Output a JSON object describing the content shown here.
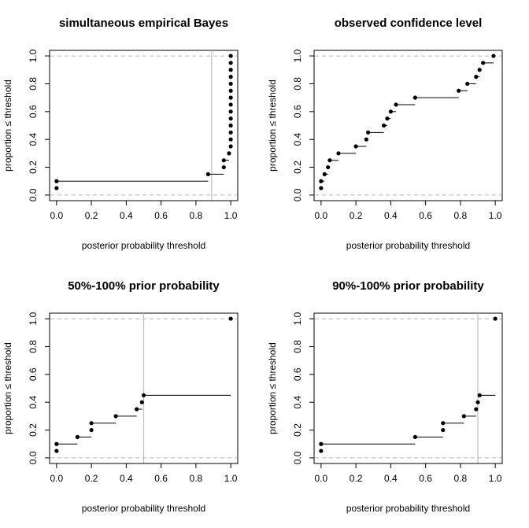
{
  "chart_data": [
    {
      "type": "scatter",
      "title": "simultaneous empirical Bayes",
      "xlabel": "posterior probability threshold",
      "ylabel": "proportion ≤ threshold",
      "xlim": [
        0,
        1
      ],
      "ylim": [
        0,
        1
      ],
      "xticks": [
        0.0,
        0.2,
        0.4,
        0.6,
        0.8,
        1.0
      ],
      "yticks": [
        0.0,
        0.2,
        0.4,
        0.6,
        0.8,
        1.0
      ],
      "tick_labels": [
        "0.0",
        "0.2",
        "0.4",
        "0.6",
        "0.8",
        "1.0"
      ],
      "ref_hlines": [
        0,
        1
      ],
      "vline": 0.89,
      "points": [
        [
          0.0,
          0.05
        ],
        [
          0.0,
          0.1
        ],
        [
          0.87,
          0.15
        ],
        [
          0.96,
          0.2
        ],
        [
          0.96,
          0.25
        ],
        [
          0.99,
          0.3
        ],
        [
          1.0,
          0.35
        ],
        [
          1.0,
          0.4
        ],
        [
          1.0,
          0.45
        ],
        [
          1.0,
          0.5
        ],
        [
          1.0,
          0.55
        ],
        [
          1.0,
          0.6
        ],
        [
          1.0,
          0.65
        ],
        [
          1.0,
          0.7
        ],
        [
          1.0,
          0.75
        ],
        [
          1.0,
          0.8
        ],
        [
          1.0,
          0.85
        ],
        [
          1.0,
          0.9
        ],
        [
          1.0,
          0.95
        ],
        [
          1.0,
          1.0
        ]
      ],
      "steps": [
        [
          0.0,
          0.87,
          0.1
        ],
        [
          0.87,
          0.96,
          0.15
        ],
        [
          0.96,
          0.99,
          0.25
        ]
      ]
    },
    {
      "type": "scatter",
      "title": "observed confidence level",
      "xlabel": "posterior probability threshold",
      "ylabel": "proportion ≤ threshold",
      "xlim": [
        0,
        1
      ],
      "ylim": [
        0,
        1
      ],
      "xticks": [
        0.0,
        0.2,
        0.4,
        0.6,
        0.8,
        1.0
      ],
      "yticks": [
        0.0,
        0.2,
        0.4,
        0.6,
        0.8,
        1.0
      ],
      "tick_labels": [
        "0.0",
        "0.2",
        "0.4",
        "0.6",
        "0.8",
        "1.0"
      ],
      "ref_hlines": [
        0,
        1
      ],
      "vline": null,
      "points": [
        [
          0.0,
          0.05
        ],
        [
          0.0,
          0.1
        ],
        [
          0.02,
          0.15
        ],
        [
          0.04,
          0.2
        ],
        [
          0.05,
          0.25
        ],
        [
          0.1,
          0.3
        ],
        [
          0.2,
          0.35
        ],
        [
          0.26,
          0.4
        ],
        [
          0.27,
          0.45
        ],
        [
          0.36,
          0.5
        ],
        [
          0.38,
          0.55
        ],
        [
          0.4,
          0.6
        ],
        [
          0.43,
          0.65
        ],
        [
          0.54,
          0.7
        ],
        [
          0.79,
          0.75
        ],
        [
          0.84,
          0.8
        ],
        [
          0.89,
          0.85
        ],
        [
          0.91,
          0.9
        ],
        [
          0.93,
          0.95
        ],
        [
          0.99,
          1.0
        ]
      ],
      "steps": [
        [
          0.0,
          0.02,
          0.1
        ],
        [
          0.02,
          0.04,
          0.15
        ],
        [
          0.05,
          0.1,
          0.25
        ],
        [
          0.1,
          0.2,
          0.3
        ],
        [
          0.2,
          0.26,
          0.35
        ],
        [
          0.27,
          0.36,
          0.45
        ],
        [
          0.36,
          0.38,
          0.5
        ],
        [
          0.38,
          0.4,
          0.55
        ],
        [
          0.4,
          0.43,
          0.6
        ],
        [
          0.43,
          0.54,
          0.65
        ],
        [
          0.54,
          0.79,
          0.7
        ],
        [
          0.79,
          0.84,
          0.75
        ],
        [
          0.84,
          0.89,
          0.8
        ],
        [
          0.89,
          0.91,
          0.85
        ],
        [
          0.93,
          0.99,
          0.95
        ],
        [
          0.99,
          1.0,
          1.0
        ]
      ]
    },
    {
      "type": "scatter",
      "title": "50%-100% prior probability",
      "xlabel": "posterior probability threshold",
      "ylabel": "proportion ≤ threshold",
      "xlim": [
        0,
        1
      ],
      "ylim": [
        0,
        1
      ],
      "xticks": [
        0.0,
        0.2,
        0.4,
        0.6,
        0.8,
        1.0
      ],
      "yticks": [
        0.0,
        0.2,
        0.4,
        0.6,
        0.8,
        1.0
      ],
      "tick_labels": [
        "0.0",
        "0.2",
        "0.4",
        "0.6",
        "0.8",
        "1.0"
      ],
      "ref_hlines": [
        0,
        1
      ],
      "vline": 0.5,
      "points": [
        [
          0.0,
          0.05
        ],
        [
          0.0,
          0.1
        ],
        [
          0.12,
          0.15
        ],
        [
          0.2,
          0.2
        ],
        [
          0.2,
          0.25
        ],
        [
          0.34,
          0.3
        ],
        [
          0.46,
          0.35
        ],
        [
          0.49,
          0.4
        ],
        [
          0.5,
          0.45
        ],
        [
          1.0,
          1.0
        ]
      ],
      "steps": [
        [
          0.0,
          0.12,
          0.1
        ],
        [
          0.12,
          0.2,
          0.15
        ],
        [
          0.2,
          0.34,
          0.25
        ],
        [
          0.34,
          0.46,
          0.3
        ],
        [
          0.46,
          0.49,
          0.35
        ],
        [
          0.5,
          1.0,
          0.45
        ]
      ]
    },
    {
      "type": "scatter",
      "title": "90%-100% prior probability",
      "xlabel": "posterior probability threshold",
      "ylabel": "proportion ≤ threshold",
      "xlim": [
        0,
        1
      ],
      "ylim": [
        0,
        1
      ],
      "xticks": [
        0.0,
        0.2,
        0.4,
        0.6,
        0.8,
        1.0
      ],
      "yticks": [
        0.0,
        0.2,
        0.4,
        0.6,
        0.8,
        1.0
      ],
      "tick_labels": [
        "0.0",
        "0.2",
        "0.4",
        "0.6",
        "0.8",
        "1.0"
      ],
      "ref_hlines": [
        0,
        1
      ],
      "vline": 0.9,
      "points": [
        [
          0.0,
          0.05
        ],
        [
          0.0,
          0.1
        ],
        [
          0.54,
          0.15
        ],
        [
          0.7,
          0.2
        ],
        [
          0.7,
          0.25
        ],
        [
          0.82,
          0.3
        ],
        [
          0.89,
          0.35
        ],
        [
          0.9,
          0.4
        ],
        [
          0.91,
          0.45
        ],
        [
          1.0,
          1.0
        ]
      ],
      "steps": [
        [
          0.0,
          0.54,
          0.1
        ],
        [
          0.54,
          0.7,
          0.15
        ],
        [
          0.7,
          0.82,
          0.25
        ],
        [
          0.82,
          0.89,
          0.3
        ],
        [
          0.91,
          1.0,
          0.45
        ]
      ]
    }
  ],
  "colors": {
    "points": "#000000",
    "steps": "#000000",
    "ref_hlines": "#b3b3b3",
    "vline": "#bebebe",
    "axis": "#000000"
  }
}
